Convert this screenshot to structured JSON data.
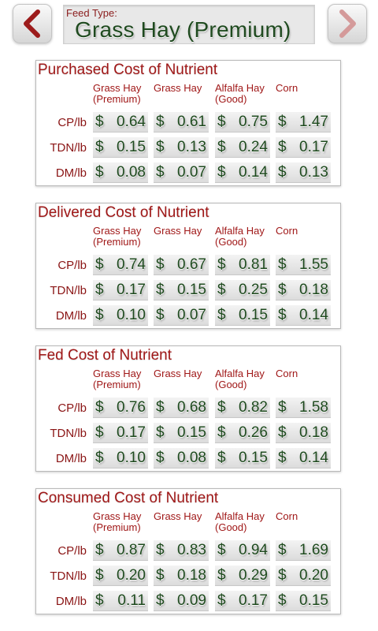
{
  "header": {
    "prev_icon": "chevron-left-icon",
    "next_icon": "chevron-right-icon",
    "feed_type_label": "Feed Type:",
    "feed_type_value": "Grass Hay (Premium)"
  },
  "columns": [
    "Grass Hay (Premium)",
    "Grass Hay",
    "Alfalfa Hay (Good)",
    "Corn"
  ],
  "row_labels": [
    "CP/lb",
    "TDN/lb",
    "DM/lb"
  ],
  "currency_symbol": "$",
  "panels": [
    {
      "title": "Purchased Cost of Nutrient",
      "rows": [
        [
          "0.64",
          "0.61",
          "0.75",
          "1.47"
        ],
        [
          "0.15",
          "0.13",
          "0.24",
          "0.17"
        ],
        [
          "0.08",
          "0.07",
          "0.14",
          "0.13"
        ]
      ]
    },
    {
      "title": "Delivered Cost of Nutrient",
      "rows": [
        [
          "0.74",
          "0.67",
          "0.81",
          "1.55"
        ],
        [
          "0.17",
          "0.15",
          "0.25",
          "0.18"
        ],
        [
          "0.10",
          "0.07",
          "0.15",
          "0.14"
        ]
      ]
    },
    {
      "title": "Fed Cost of Nutrient",
      "rows": [
        [
          "0.76",
          "0.68",
          "0.82",
          "1.58"
        ],
        [
          "0.17",
          "0.15",
          "0.26",
          "0.18"
        ],
        [
          "0.10",
          "0.08",
          "0.15",
          "0.14"
        ]
      ]
    },
    {
      "title": "Consumed Cost of Nutrient",
      "rows": [
        [
          "0.87",
          "0.83",
          "0.94",
          "1.69"
        ],
        [
          "0.20",
          "0.18",
          "0.29",
          "0.20"
        ],
        [
          "0.11",
          "0.09",
          "0.17",
          "0.15"
        ]
      ]
    }
  ],
  "colors": {
    "accent_red": "#a01818",
    "value_green": "#1e4a1e",
    "chevron_red": "#9c1b1b",
    "chevron_pale": "#d49a9a"
  }
}
